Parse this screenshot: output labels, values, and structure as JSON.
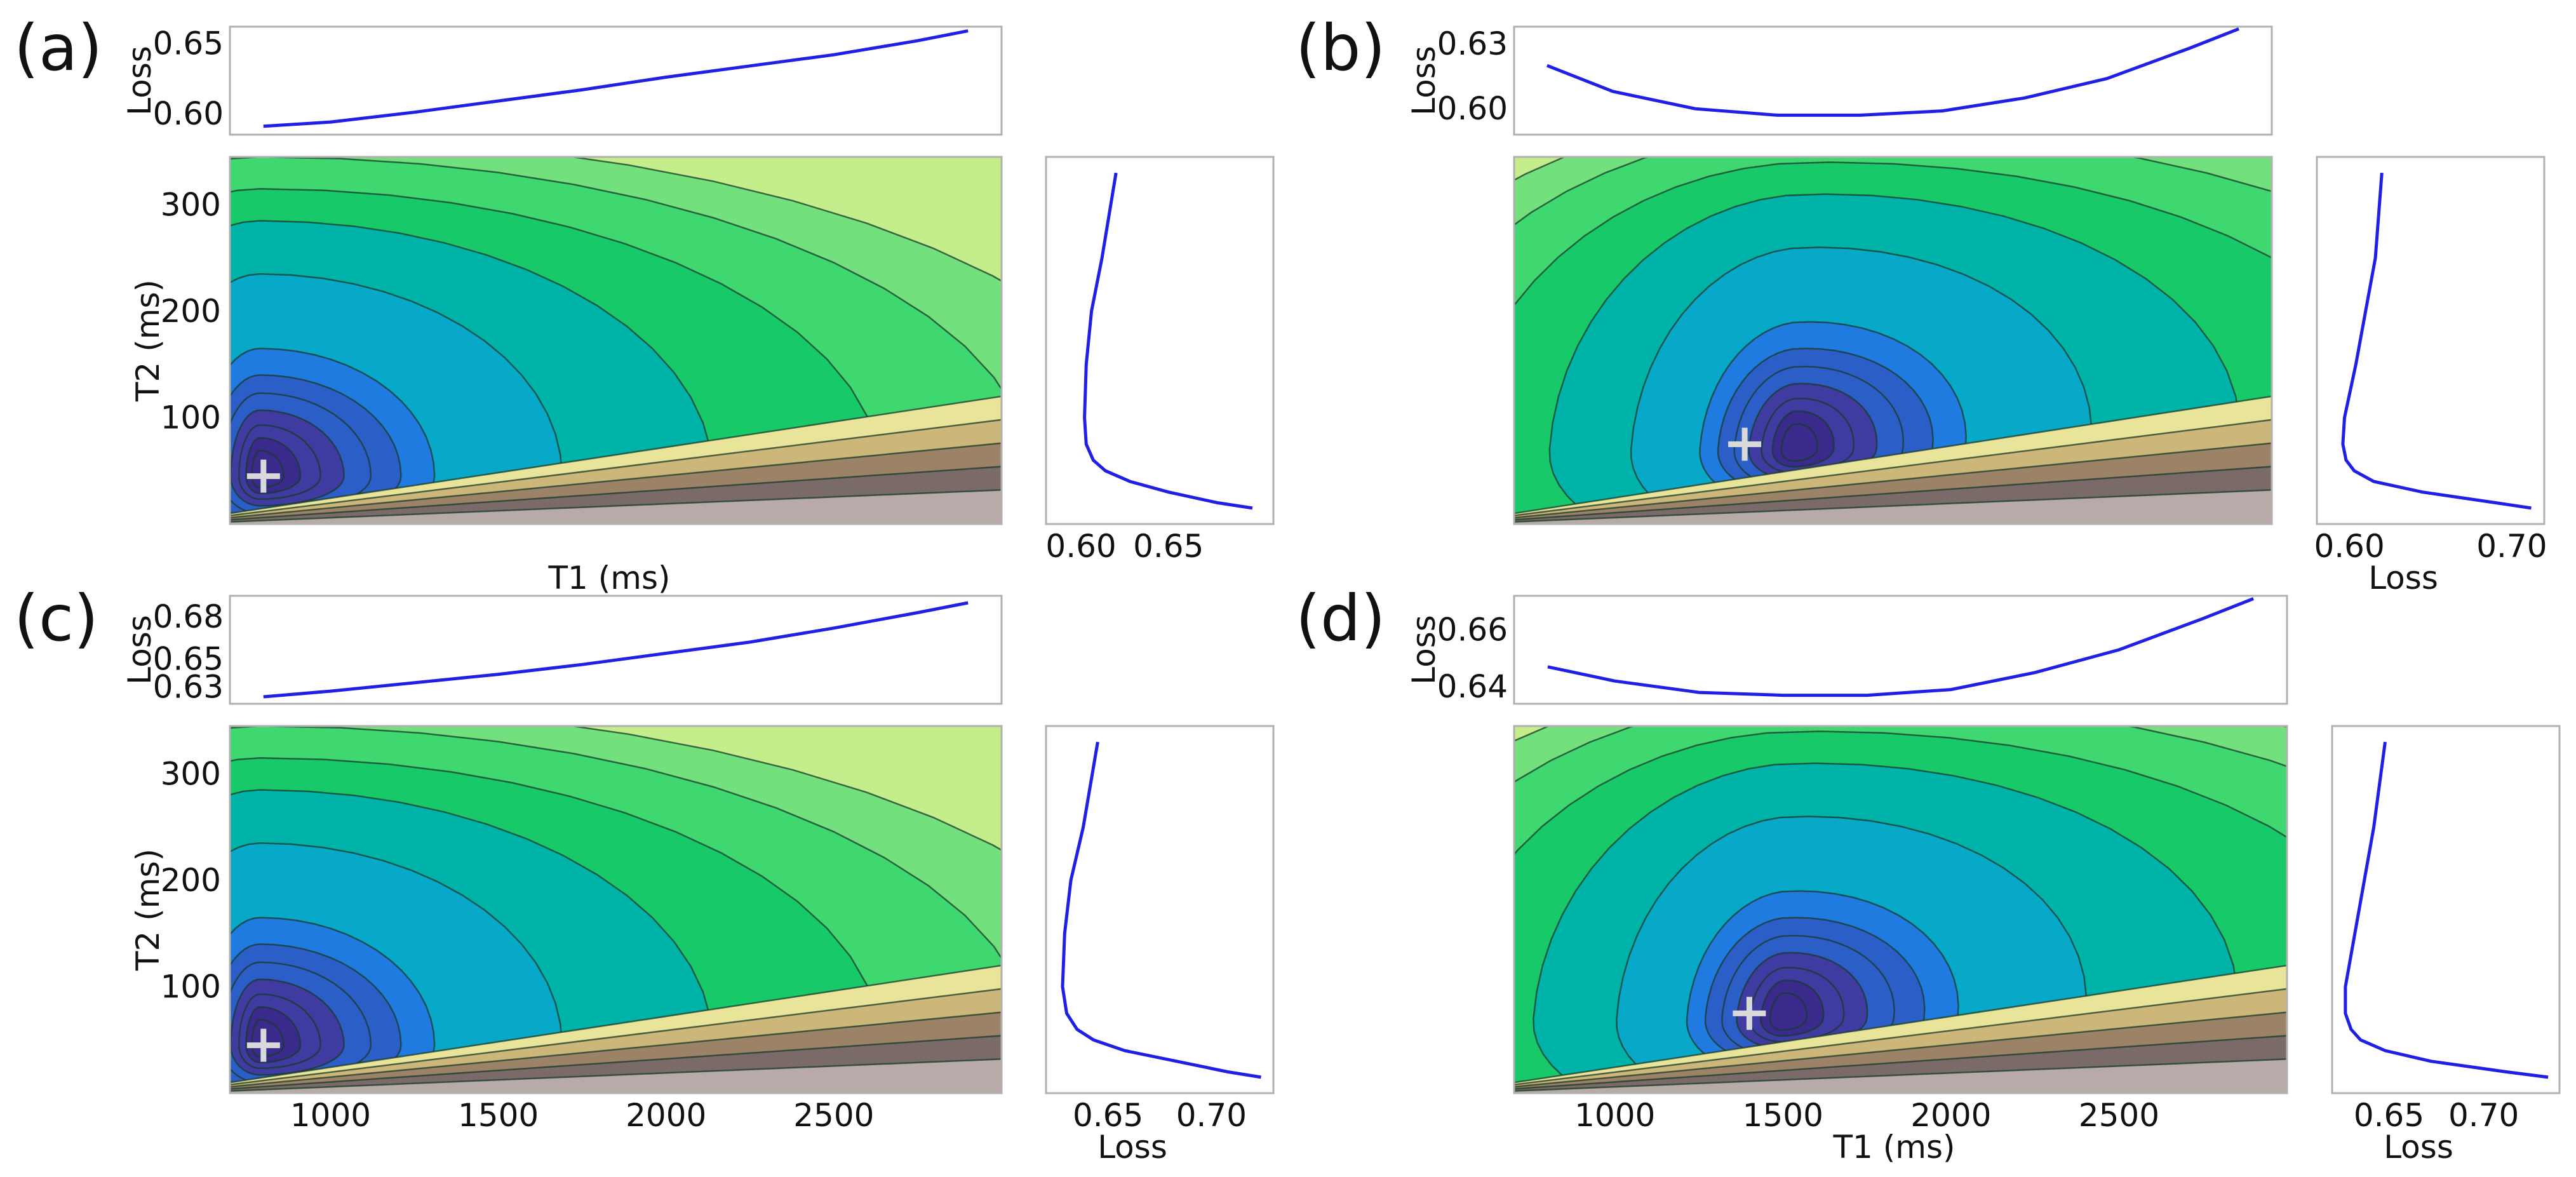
{
  "figure": {
    "description_labels": [
      "(a)",
      "(b)",
      "(c)",
      "(d)"
    ]
  },
  "chart_data": [
    {
      "panel_label": "(a)",
      "type": "contour",
      "x_label": "T1 (ms)",
      "y_label": "T2 (ms)",
      "x_range": [
        700,
        3000
      ],
      "y_range": [
        0,
        345
      ],
      "x_ticks": [],
      "x_tick_labels": [],
      "y_ticks": [
        100,
        200,
        300
      ],
      "y_tick_labels": [
        "100",
        "200",
        "300"
      ],
      "minimum_marker": {
        "x": 800,
        "y": 45,
        "symbol": "+"
      },
      "contour_field": {
        "skew": 0.0,
        "center_x": 790,
        "center_y": 45
      },
      "top_profile": {
        "type": "line",
        "y_label": "Loss",
        "y_range": [
          0.585,
          0.662
        ],
        "y_ticks": [
          0.6,
          0.65
        ],
        "y_tick_labels": [
          "0.60",
          "0.65"
        ],
        "x": [
          800,
          1000,
          1250,
          1500,
          1750,
          2000,
          2250,
          2500,
          2750,
          2900
        ],
        "y": [
          0.591,
          0.594,
          0.601,
          0.609,
          0.617,
          0.626,
          0.634,
          0.642,
          0.652,
          0.659
        ]
      },
      "side_profile": {
        "type": "line",
        "x_label": "",
        "x_range": [
          0.58,
          0.71
        ],
        "x_ticks": [
          0.6,
          0.65
        ],
        "x_tick_labels": [
          "0.60",
          "0.65"
        ],
        "t2": [
          330,
          250,
          200,
          150,
          100,
          75,
          60,
          50,
          40,
          30,
          20,
          15
        ],
        "loss": [
          0.62,
          0.612,
          0.606,
          0.603,
          0.602,
          0.603,
          0.607,
          0.614,
          0.628,
          0.65,
          0.678,
          0.698
        ]
      }
    },
    {
      "panel_label": "(b)",
      "type": "contour",
      "x_label": "",
      "y_label": "",
      "x_range": [
        700,
        3000
      ],
      "y_range": [
        0,
        345
      ],
      "x_ticks": [],
      "x_tick_labels": [],
      "y_ticks": [],
      "y_tick_labels": [],
      "minimum_marker": {
        "x": 1400,
        "y": 75,
        "symbol": "+"
      },
      "contour_field": {
        "skew": 0.1,
        "center_x": 1550,
        "center_y": 70
      },
      "top_profile": {
        "type": "line",
        "y_label": "Loss",
        "y_range": [
          0.588,
          0.638
        ],
        "y_ticks": [
          0.6,
          0.63
        ],
        "y_tick_labels": [
          "0.60",
          "0.63"
        ],
        "x": [
          800,
          1000,
          1250,
          1500,
          1750,
          2000,
          2250,
          2500,
          2750,
          2900
        ],
        "y": [
          0.62,
          0.608,
          0.6,
          0.597,
          0.597,
          0.599,
          0.605,
          0.614,
          0.628,
          0.637
        ]
      },
      "side_profile": {
        "type": "line",
        "x_label": "Loss",
        "x_range": [
          0.58,
          0.72
        ],
        "x_ticks": [
          0.6,
          0.7
        ],
        "x_tick_labels": [
          "0.60",
          "0.70"
        ],
        "t2": [
          330,
          250,
          200,
          150,
          100,
          75,
          60,
          50,
          40,
          30,
          20,
          15
        ],
        "loss": [
          0.62,
          0.616,
          0.61,
          0.604,
          0.597,
          0.596,
          0.598,
          0.603,
          0.615,
          0.645,
          0.69,
          0.712
        ]
      }
    },
    {
      "panel_label": "(c)",
      "type": "contour",
      "x_label": "",
      "y_label": "T2 (ms)",
      "x_range": [
        700,
        3000
      ],
      "y_range": [
        0,
        345
      ],
      "x_ticks": [
        1000,
        1500,
        2000,
        2500
      ],
      "x_tick_labels": [
        "1000",
        "1500",
        "2000",
        "2500"
      ],
      "y_ticks": [
        100,
        200,
        300
      ],
      "y_tick_labels": [
        "100",
        "200",
        "300"
      ],
      "minimum_marker": {
        "x": 800,
        "y": 45,
        "symbol": "+"
      },
      "contour_field": {
        "skew": 0.0,
        "center_x": 790,
        "center_y": 45
      },
      "top_profile": {
        "type": "line",
        "y_label": "Loss",
        "y_range": [
          0.618,
          0.695
        ],
        "y_ticks": [
          0.63,
          0.65,
          0.68
        ],
        "y_tick_labels": [
          "0.63",
          "0.65",
          "0.68"
        ],
        "x": [
          800,
          1000,
          1250,
          1500,
          1750,
          2000,
          2250,
          2500,
          2750,
          2900
        ],
        "y": [
          0.623,
          0.627,
          0.633,
          0.639,
          0.646,
          0.654,
          0.662,
          0.672,
          0.683,
          0.69
        ]
      },
      "side_profile": {
        "type": "line",
        "x_label": "Loss",
        "x_range": [
          0.62,
          0.73
        ],
        "x_ticks": [
          0.65,
          0.7
        ],
        "x_tick_labels": [
          "0.65",
          "0.70"
        ],
        "t2": [
          330,
          250,
          200,
          150,
          100,
          75,
          60,
          50,
          40,
          30,
          20,
          15
        ],
        "loss": [
          0.645,
          0.638,
          0.632,
          0.629,
          0.628,
          0.63,
          0.635,
          0.643,
          0.658,
          0.683,
          0.708,
          0.724
        ]
      }
    },
    {
      "panel_label": "(d)",
      "type": "contour",
      "x_label": "T1 (ms)",
      "y_label": "",
      "x_range": [
        700,
        3000
      ],
      "y_range": [
        0,
        345
      ],
      "x_ticks": [
        1000,
        1500,
        2000,
        2500
      ],
      "x_tick_labels": [
        "1000",
        "1500",
        "2000",
        "2500"
      ],
      "y_ticks": [],
      "y_tick_labels": [],
      "minimum_marker": {
        "x": 1400,
        "y": 75,
        "symbol": "+"
      },
      "contour_field": {
        "skew": 0.1,
        "center_x": 1500,
        "center_y": 70
      },
      "top_profile": {
        "type": "line",
        "y_label": "Loss",
        "y_range": [
          0.634,
          0.672
        ],
        "y_ticks": [
          0.64,
          0.66
        ],
        "y_tick_labels": [
          "0.64",
          "0.66"
        ],
        "x": [
          800,
          1000,
          1250,
          1500,
          1750,
          2000,
          2250,
          2500,
          2750,
          2900
        ],
        "y": [
          0.647,
          0.642,
          0.638,
          0.637,
          0.637,
          0.639,
          0.645,
          0.653,
          0.664,
          0.671
        ]
      },
      "side_profile": {
        "type": "line",
        "x_label": "Loss",
        "x_range": [
          0.62,
          0.74
        ],
        "x_ticks": [
          0.65,
          0.7
        ],
        "x_tick_labels": [
          "0.65",
          "0.70"
        ],
        "t2": [
          330,
          250,
          200,
          150,
          100,
          75,
          60,
          50,
          40,
          30,
          20,
          15
        ],
        "loss": [
          0.648,
          0.642,
          0.637,
          0.632,
          0.627,
          0.627,
          0.63,
          0.635,
          0.648,
          0.672,
          0.712,
          0.734
        ]
      }
    }
  ],
  "colors": {
    "curve": "#1f1fe6",
    "marker": "#d9d9d9",
    "levels": [
      "#3a2a8c",
      "#3f3ba0",
      "#2b5fc7",
      "#1f7be0",
      "#08a8c8",
      "#00b3a8",
      "#18c96a",
      "#3fd870",
      "#72e07c",
      "#c4ee8c",
      "#e8e59a",
      "#cdb679",
      "#9c8368",
      "#7a6b68",
      "#b8aaa8"
    ]
  }
}
